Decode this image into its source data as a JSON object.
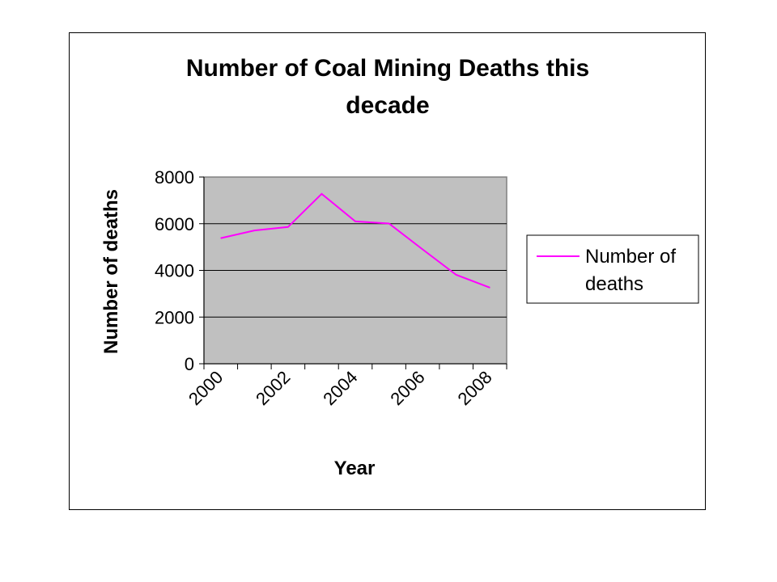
{
  "chart_data": {
    "type": "line",
    "title": "Number of Coal Mining Deaths this decade",
    "xlabel": "Year",
    "ylabel": "Number of deaths",
    "categories": [
      "2000",
      "2001",
      "2002",
      "2003",
      "2004",
      "2005",
      "2006",
      "2007",
      "2008"
    ],
    "x_tick_labels": [
      "2000",
      "2002",
      "2004",
      "2006",
      "2008"
    ],
    "y_tick_labels": [
      "0",
      "2000",
      "4000",
      "6000",
      "8000"
    ],
    "ylim": [
      0,
      8000
    ],
    "grid": true,
    "plot_background": "#c0c0c0",
    "legend_position": "right",
    "series": [
      {
        "name": "Number of deaths",
        "color": "#ff00ff",
        "values": [
          5380,
          5710,
          5860,
          7280,
          6100,
          6010,
          4900,
          3810,
          3260
        ]
      }
    ]
  }
}
